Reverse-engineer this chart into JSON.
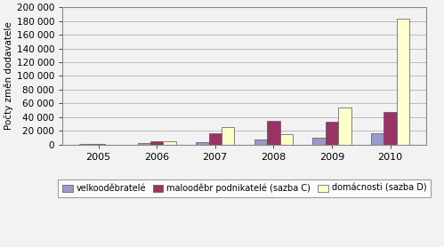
{
  "years": [
    "2005",
    "2006",
    "2007",
    "2008",
    "2009",
    "2010"
  ],
  "velkoodberatele": [
    800,
    2500,
    4000,
    7000,
    10000,
    17000
  ],
  "maloodb_podnikatele": [
    1500,
    5000,
    16000,
    35000,
    33000,
    48000
  ],
  "domacnosti": [
    300,
    4500,
    25000,
    15000,
    54000,
    184000
  ],
  "color_velko": "#9999CC",
  "color_malo": "#993366",
  "color_dom": "#FFFFCC",
  "ylabel": "Počty změn dodavatele",
  "legend_velko": "velkooděbratelé",
  "legend_malo": "malooděbr podnikatelé (sazba C)",
  "legend_dom": "domácnosti (sazba D)",
  "ylim": [
    0,
    200000
  ],
  "yticks": [
    0,
    20000,
    40000,
    60000,
    80000,
    100000,
    120000,
    140000,
    160000,
    180000,
    200000
  ],
  "bg_color": "#F2F2F2",
  "plot_bg_color": "#F2F2F2",
  "border_color": "#888888",
  "grid_color": "#BBBBBB",
  "bar_edge_color": "#555555",
  "bar_width": 0.22
}
